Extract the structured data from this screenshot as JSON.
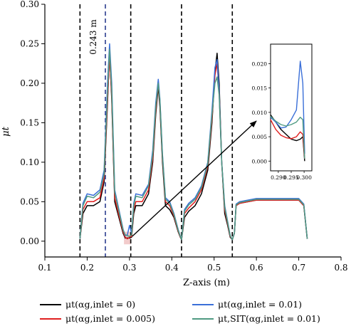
{
  "chart_data": {
    "type": "line",
    "xlabel": "Z-axis (m)",
    "ylabel": "μt",
    "xlim": [
      0.1,
      0.8
    ],
    "ylim": [
      -0.02,
      0.3
    ],
    "x_ticks": [
      "0.1",
      "0.2",
      "0.3",
      "0.4",
      "0.5",
      "0.6",
      "0.7",
      "0.8"
    ],
    "y_ticks": [
      "0.00",
      "0.05",
      "0.10",
      "0.15",
      "0.20",
      "0.25",
      "0.30"
    ],
    "vertical_lines": [
      {
        "x": 0.183,
        "color": "#000000"
      },
      {
        "x": 0.243,
        "color": "#2b3d8f"
      },
      {
        "x": 0.303,
        "color": "#000000"
      },
      {
        "x": 0.423,
        "color": "#000000"
      },
      {
        "x": 0.543,
        "color": "#000000"
      }
    ],
    "vline_annotation": "0.243 m",
    "legend_placement": "bottom",
    "series": [
      {
        "name": "μt(αg,inlet = 0)",
        "color": "#000000",
        "x": [
          0.183,
          0.19,
          0.2,
          0.215,
          0.23,
          0.24,
          0.248,
          0.253,
          0.258,
          0.265,
          0.275,
          0.285,
          0.29,
          0.295,
          0.3,
          0.305,
          0.31,
          0.315,
          0.33,
          0.345,
          0.355,
          0.362,
          0.368,
          0.372,
          0.378,
          0.385,
          0.395,
          0.405,
          0.415,
          0.42,
          0.423,
          0.43,
          0.44,
          0.455,
          0.47,
          0.485,
          0.495,
          0.502,
          0.507,
          0.512,
          0.518,
          0.525,
          0.532,
          0.538,
          0.543,
          0.548,
          0.552,
          0.56,
          0.6,
          0.65,
          0.7,
          0.712,
          0.72
        ],
        "y": [
          0.003,
          0.035,
          0.045,
          0.045,
          0.05,
          0.075,
          0.175,
          0.24,
          0.18,
          0.05,
          0.03,
          0.01,
          0.004,
          0.004,
          0.004,
          0.005,
          0.035,
          0.045,
          0.045,
          0.06,
          0.1,
          0.16,
          0.196,
          0.17,
          0.1,
          0.045,
          0.04,
          0.03,
          0.012,
          0.005,
          0.002,
          0.03,
          0.038,
          0.045,
          0.06,
          0.09,
          0.15,
          0.215,
          0.238,
          0.2,
          0.1,
          0.035,
          0.02,
          0.005,
          0.002,
          0.01,
          0.045,
          0.048,
          0.052,
          0.052,
          0.052,
          0.045,
          0.003
        ]
      },
      {
        "name": "μt(αg,inlet = 0.005)",
        "color": "#e02020",
        "x": [
          0.183,
          0.19,
          0.2,
          0.215,
          0.23,
          0.24,
          0.248,
          0.253,
          0.258,
          0.265,
          0.275,
          0.285,
          0.29,
          0.295,
          0.3,
          0.305,
          0.31,
          0.315,
          0.33,
          0.345,
          0.355,
          0.362,
          0.368,
          0.372,
          0.378,
          0.385,
          0.395,
          0.405,
          0.415,
          0.42,
          0.423,
          0.43,
          0.44,
          0.455,
          0.47,
          0.485,
          0.495,
          0.502,
          0.507,
          0.512,
          0.518,
          0.525,
          0.532,
          0.538,
          0.543,
          0.548,
          0.552,
          0.56,
          0.6,
          0.65,
          0.7,
          0.712,
          0.72
        ],
        "y": [
          0.003,
          0.04,
          0.05,
          0.05,
          0.055,
          0.08,
          0.18,
          0.235,
          0.185,
          0.055,
          0.033,
          0.012,
          0.005,
          0.003,
          0.005,
          0.006,
          0.04,
          0.05,
          0.05,
          0.065,
          0.105,
          0.165,
          0.2,
          0.175,
          0.105,
          0.05,
          0.045,
          0.032,
          0.013,
          0.005,
          0.002,
          0.035,
          0.042,
          0.05,
          0.065,
          0.095,
          0.155,
          0.21,
          0.225,
          0.19,
          0.1,
          0.04,
          0.022,
          0.006,
          0.002,
          0.01,
          0.045,
          0.048,
          0.052,
          0.052,
          0.052,
          0.045,
          0.003
        ]
      },
      {
        "name": "μt(αg,inlet = 0.01)",
        "color": "#3a6fd8",
        "x": [
          0.183,
          0.19,
          0.2,
          0.215,
          0.23,
          0.24,
          0.248,
          0.253,
          0.258,
          0.265,
          0.275,
          0.285,
          0.29,
          0.295,
          0.3,
          0.305,
          0.31,
          0.315,
          0.33,
          0.345,
          0.355,
          0.362,
          0.368,
          0.372,
          0.378,
          0.385,
          0.395,
          0.405,
          0.415,
          0.42,
          0.423,
          0.43,
          0.44,
          0.455,
          0.47,
          0.485,
          0.495,
          0.502,
          0.507,
          0.512,
          0.518,
          0.525,
          0.532,
          0.538,
          0.543,
          0.548,
          0.552,
          0.56,
          0.6,
          0.65,
          0.7,
          0.712,
          0.72
        ],
        "y": [
          0.003,
          0.048,
          0.06,
          0.058,
          0.065,
          0.09,
          0.2,
          0.25,
          0.2,
          0.065,
          0.04,
          0.015,
          0.007,
          0.008,
          0.02,
          0.01,
          0.048,
          0.06,
          0.058,
          0.072,
          0.115,
          0.175,
          0.205,
          0.18,
          0.11,
          0.055,
          0.05,
          0.035,
          0.015,
          0.006,
          0.002,
          0.04,
          0.048,
          0.055,
          0.07,
          0.1,
          0.165,
          0.22,
          0.23,
          0.19,
          0.1,
          0.045,
          0.025,
          0.007,
          0.002,
          0.01,
          0.047,
          0.05,
          0.054,
          0.054,
          0.054,
          0.047,
          0.003
        ]
      },
      {
        "name": "μt,SIT(αg,inlet = 0.01)",
        "color": "#4f9a82",
        "x": [
          0.183,
          0.19,
          0.2,
          0.215,
          0.23,
          0.24,
          0.248,
          0.253,
          0.258,
          0.265,
          0.275,
          0.285,
          0.29,
          0.295,
          0.3,
          0.305,
          0.31,
          0.315,
          0.33,
          0.345,
          0.355,
          0.362,
          0.368,
          0.372,
          0.378,
          0.385,
          0.395,
          0.405,
          0.415,
          0.42,
          0.423,
          0.43,
          0.44,
          0.455,
          0.47,
          0.485,
          0.495,
          0.502,
          0.507,
          0.512,
          0.518,
          0.525,
          0.532,
          0.538,
          0.543,
          0.548,
          0.552,
          0.56,
          0.6,
          0.65,
          0.7,
          0.712,
          0.72
        ],
        "y": [
          0.003,
          0.045,
          0.057,
          0.055,
          0.062,
          0.085,
          0.19,
          0.243,
          0.192,
          0.062,
          0.038,
          0.014,
          0.008,
          0.007,
          0.006,
          0.008,
          0.045,
          0.057,
          0.055,
          0.07,
          0.11,
          0.17,
          0.2,
          0.178,
          0.108,
          0.053,
          0.048,
          0.034,
          0.014,
          0.006,
          0.002,
          0.038,
          0.046,
          0.053,
          0.068,
          0.098,
          0.16,
          0.2,
          0.208,
          0.185,
          0.1,
          0.043,
          0.024,
          0.007,
          0.002,
          0.01,
          0.046,
          0.049,
          0.053,
          0.053,
          0.053,
          0.046,
          0.003
        ]
      }
    ],
    "inset": {
      "xlim": [
        0.287,
        0.303
      ],
      "ylim": [
        -0.002,
        0.024
      ],
      "x_ticks": [
        "0.290",
        "0.295",
        "0.300"
      ],
      "y_ticks": [
        "0.000",
        "0.005",
        "0.010",
        "0.015",
        "0.020"
      ],
      "series": [
        {
          "color": "#000000",
          "x": [
            0.287,
            0.289,
            0.291,
            0.293,
            0.295,
            0.297,
            0.2985,
            0.2995,
            0.3002
          ],
          "y": [
            0.0095,
            0.008,
            0.0065,
            0.0055,
            0.0045,
            0.0042,
            0.0045,
            0.005,
            0.0
          ]
        },
        {
          "color": "#e02020",
          "x": [
            0.287,
            0.289,
            0.291,
            0.293,
            0.295,
            0.297,
            0.2985,
            0.2995,
            0.3002
          ],
          "y": [
            0.0085,
            0.0065,
            0.0053,
            0.0048,
            0.0046,
            0.005,
            0.006,
            0.0055,
            0.0005
          ]
        },
        {
          "color": "#3a6fd8",
          "x": [
            0.287,
            0.289,
            0.291,
            0.293,
            0.295,
            0.297,
            0.2985,
            0.2995,
            0.3002
          ],
          "y": [
            0.009,
            0.008,
            0.0068,
            0.007,
            0.0085,
            0.0105,
            0.0205,
            0.016,
            0.0015
          ]
        },
        {
          "color": "#4f9a82",
          "x": [
            0.287,
            0.289,
            0.291,
            0.293,
            0.295,
            0.297,
            0.2985,
            0.2995,
            0.3002
          ],
          "y": [
            0.0092,
            0.0082,
            0.0075,
            0.0072,
            0.0075,
            0.008,
            0.009,
            0.0085,
            0.0005
          ]
        }
      ]
    }
  }
}
